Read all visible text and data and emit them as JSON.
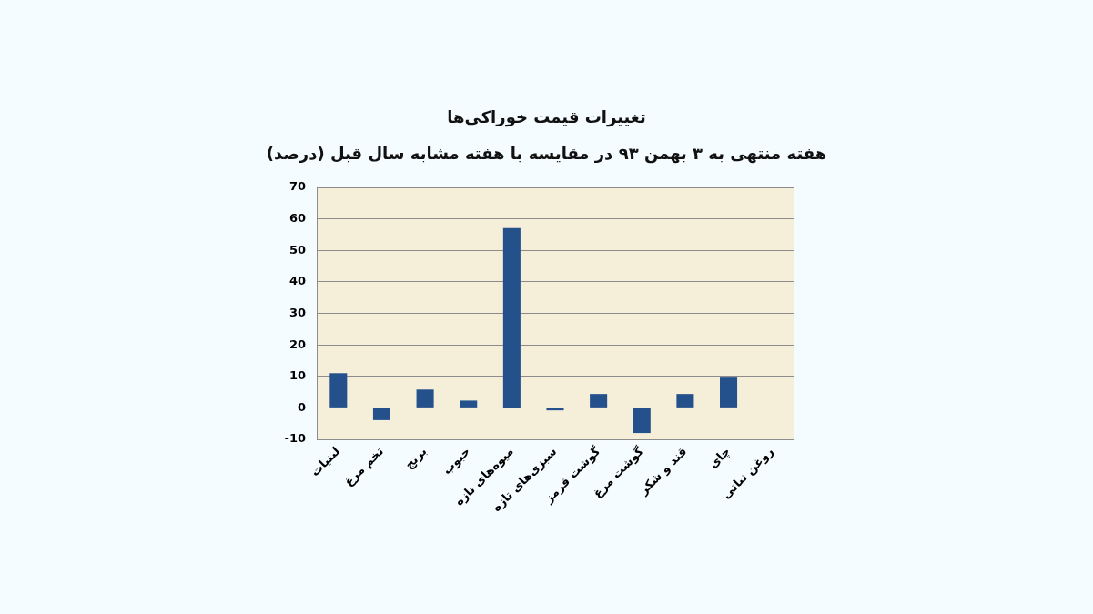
{
  "chart_data": {
    "type": "bar",
    "title": "تغییرات قیمت خوراکی‌ها",
    "subtitle": "هفته منتهی به ۳ بهمن ۹۳ در مقایسه با هفته مشابه سال قبل (درصد)",
    "categories": [
      "لبنیات",
      "تخم مرغ",
      "برنج",
      "حبوب",
      "میوه‌های تازه",
      "سبزی‌های تازه",
      "گوشت قرمز",
      "گوشت مرغ",
      "قند و شکر",
      "چای",
      "روغن نباتی"
    ],
    "values": [
      11,
      -3.9,
      5.8,
      2.3,
      57.1,
      -0.8,
      4.4,
      -8,
      4.4,
      9.6,
      0
    ],
    "color": "#24508c",
    "ylim": [
      -10,
      70
    ],
    "yticks": [
      -10,
      0,
      10,
      20,
      30,
      40,
      50,
      60,
      70
    ],
    "grid": "y"
  }
}
